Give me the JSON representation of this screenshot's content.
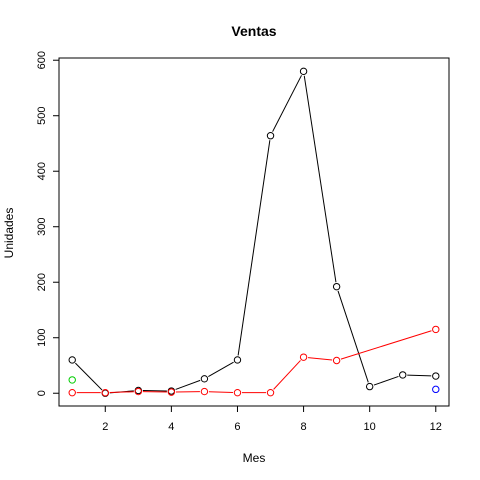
{
  "chart_data": {
    "type": "line",
    "title": "Ventas",
    "xlabel": "Mes",
    "ylabel": "Unidades",
    "xlim": [
      0.6,
      12.4
    ],
    "ylim": [
      -23,
      604
    ],
    "xticks": [
      2,
      4,
      6,
      8,
      10,
      12
    ],
    "yticks": [
      0,
      100,
      200,
      300,
      400,
      500,
      600
    ],
    "grid": false,
    "legend": "none",
    "series": [
      {
        "color": "#000000",
        "mode": "lines+markers",
        "x": [
          1,
          2,
          3,
          4,
          5,
          6,
          7,
          8,
          9,
          10,
          11,
          12
        ],
        "y": [
          60,
          0,
          5,
          4,
          26,
          60,
          464,
          580,
          192,
          12,
          33,
          31
        ]
      },
      {
        "color": "#ff0000",
        "mode": "lines+markers",
        "x": [
          1,
          2,
          3,
          4,
          5,
          6,
          7,
          8,
          9,
          12
        ],
        "y": [
          1,
          1,
          3,
          2,
          3,
          1,
          1,
          65,
          59,
          115
        ]
      },
      {
        "color": "#00cc00",
        "mode": "markers",
        "x": [
          1
        ],
        "y": [
          24
        ]
      },
      {
        "color": "#0000ff",
        "mode": "markers",
        "x": [
          12
        ],
        "y": [
          7
        ]
      }
    ]
  }
}
